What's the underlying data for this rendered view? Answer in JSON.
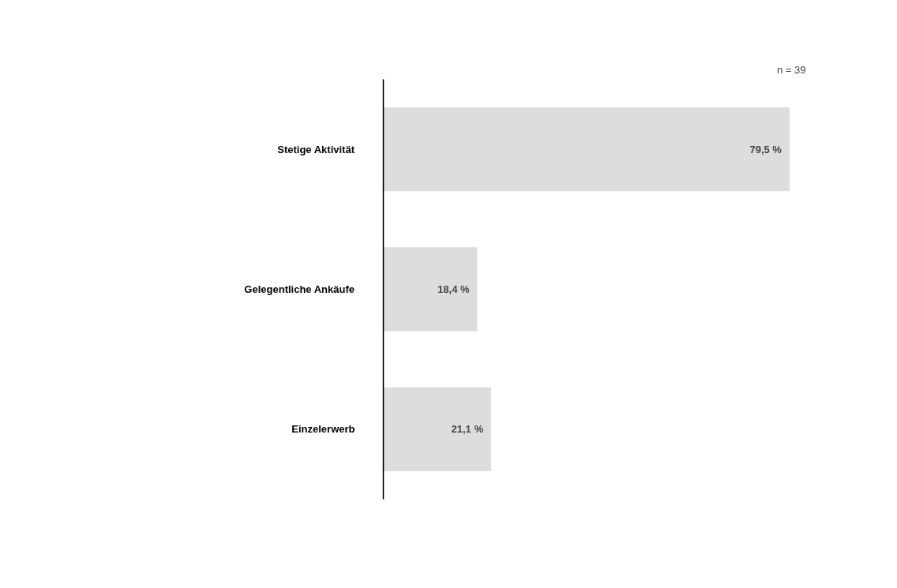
{
  "chart_data": {
    "type": "bar",
    "orientation": "horizontal",
    "categories": [
      "Stetige Aktivität",
      "Gelegentliche Ankäufe",
      "Einzelerwerb"
    ],
    "values": [
      79.5,
      18.4,
      21.1
    ],
    "value_labels": [
      "79,5 %",
      "18,4 %",
      "21,1 %"
    ],
    "color": "#dddddd",
    "grid": false,
    "annotations": [
      "n = 39"
    ]
  }
}
